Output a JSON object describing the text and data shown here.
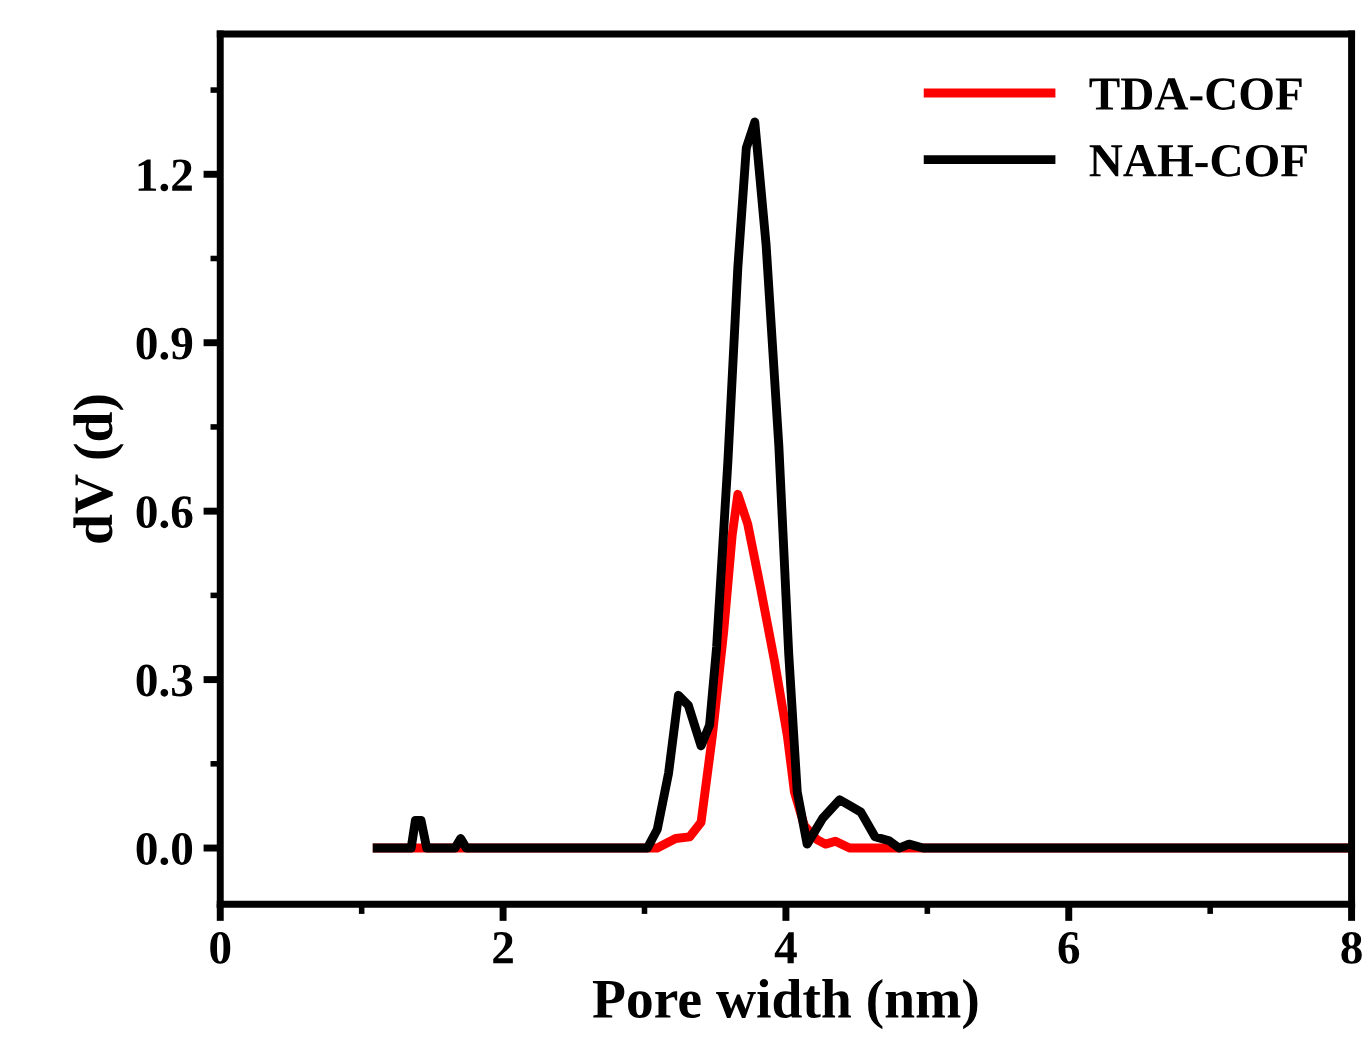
{
  "chart_data": {
    "type": "line",
    "xlabel": "Pore width (nm)",
    "ylabel": "dV (d)",
    "xlim": [
      0,
      8
    ],
    "xticks": [
      0,
      2,
      4,
      6,
      8
    ],
    "ylim": [
      -0.1,
      1.45
    ],
    "yticks": [
      {
        "value": 0,
        "label": "0.0"
      },
      0.3,
      0.6,
      0.9,
      1.2
    ],
    "grid": false,
    "legend": "top right",
    "marker": "none",
    "line_style": "solid",
    "series": [
      {
        "name": "TDA-COF",
        "color": "#ff0000",
        "x": [
          1.11,
          3.09,
          3.22,
          3.32,
          3.4,
          3.48,
          3.56,
          3.62,
          3.66,
          3.73,
          3.82,
          3.92,
          4.01,
          4.06,
          4.13,
          4.22,
          4.28,
          4.35,
          4.45,
          8.0
        ],
        "values": [
          0,
          0,
          0.017,
          0.02,
          0.046,
          0.2,
          0.385,
          0.557,
          0.63,
          0.577,
          0.464,
          0.332,
          0.2,
          0.1,
          0.04,
          0.015,
          0.007,
          0.012,
          0,
          0
        ]
      },
      {
        "name": "NAH-COF",
        "color": "#000000",
        "x": [
          1.11,
          1.35,
          1.38,
          1.42,
          1.46,
          1.66,
          1.7,
          1.74,
          3.02,
          3.09,
          3.17,
          3.24,
          3.31,
          3.4,
          3.46,
          3.51,
          3.59,
          3.66,
          3.72,
          3.78,
          3.86,
          3.95,
          4.02,
          4.08,
          4.15,
          4.26,
          4.38,
          4.47,
          4.53,
          4.63,
          4.73,
          4.8,
          4.87,
          4.97,
          8.0
        ],
        "values": [
          0,
          0,
          0.049,
          0.049,
          0,
          0,
          0.017,
          0,
          0,
          0.033,
          0.133,
          0.272,
          0.254,
          0.182,
          0.219,
          0.358,
          0.69,
          1.034,
          1.247,
          1.293,
          1.074,
          0.716,
          0.345,
          0.1,
          0.007,
          0.053,
          0.086,
          0.073,
          0.064,
          0.02,
          0.013,
          0,
          0.007,
          0,
          0
        ]
      }
    ]
  }
}
